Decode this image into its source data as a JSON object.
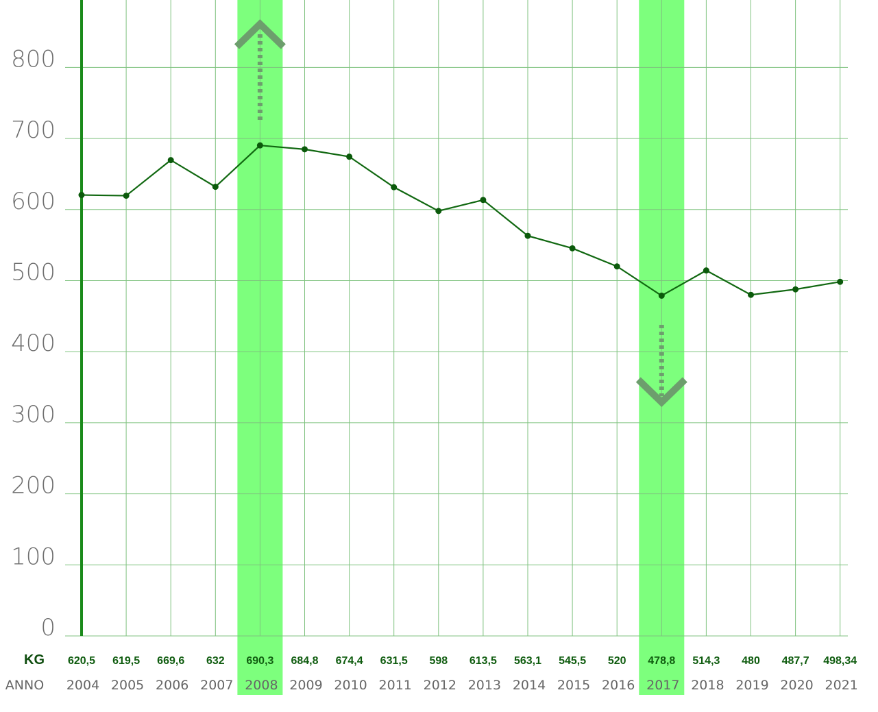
{
  "chart_data": {
    "type": "line",
    "categories": [
      "2004",
      "2005",
      "2006",
      "2007",
      "2008",
      "2009",
      "2010",
      "2011",
      "2012",
      "2013",
      "2014",
      "2015",
      "2016",
      "2017",
      "2018",
      "2019",
      "2020",
      "2021"
    ],
    "values": [
      620.5,
      619.5,
      669.6,
      632,
      690.3,
      684.8,
      674.4,
      631.5,
      598,
      613.5,
      563.1,
      545.5,
      520,
      478.8,
      514.3,
      480,
      487.7,
      498.34
    ],
    "value_labels": [
      "620,5",
      "619,5",
      "669,6",
      "632",
      "690,3",
      "684,8",
      "674,4",
      "631,5",
      "598",
      "613,5",
      "563,1",
      "545,5",
      "520",
      "478,8",
      "514,3",
      "480",
      "487,7",
      "498,34"
    ],
    "y_ticks": [
      "0",
      "100",
      "200",
      "300",
      "400",
      "500",
      "600",
      "700",
      "800"
    ],
    "ylim": [
      0,
      880
    ],
    "row_labels": {
      "values": "KG",
      "years": "ANNO"
    },
    "highlights": [
      {
        "category": "2008",
        "direction": "up"
      },
      {
        "category": "2017",
        "direction": "down"
      }
    ],
    "grid": true,
    "colors": {
      "line": "#116811",
      "point": "#0b5a0b",
      "grid": "#7fc27f",
      "highlight_band": "#7dff7d",
      "arrow": "#6d9e6d",
      "axis": "#1a8a1a"
    }
  }
}
